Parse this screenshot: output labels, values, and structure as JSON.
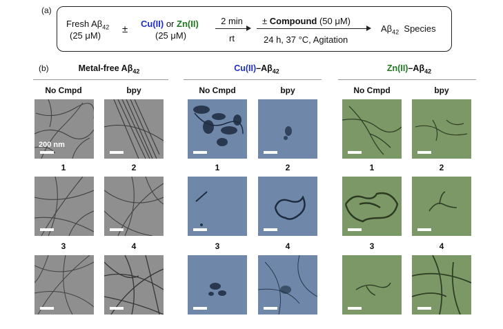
{
  "panel_a_label": "(a)",
  "panel_b_label": "(b)",
  "scheme": {
    "fresh_label": "Fresh Aβ",
    "fresh_sub": "42",
    "fresh_conc": "(25 μM)",
    "plus_minus": "±",
    "cu_label": "Cu(II)",
    "or_label": " or ",
    "zn_label": "Zn(II)",
    "metal_conc": "(25 μM)",
    "step1_top": "2 min",
    "step1_bottom": "rt",
    "step2_pm": "± ",
    "step2_compound": "Compound",
    "step2_conc": " (50 μM)",
    "step2_bottom": "24 h, 37 °C, Agitation",
    "product": "Aβ",
    "product_sub": "42",
    "product_suffix": "  Species"
  },
  "groups": [
    {
      "title_pre": "Metal-free Aβ",
      "title_sub": "42",
      "title_metal": ""
    },
    {
      "title_metal": "Cu(II)",
      "title_pre": "–Aβ",
      "title_sub": "42"
    },
    {
      "title_metal": "Zn(II)",
      "title_pre": "–Aβ",
      "title_sub": "42"
    }
  ],
  "column_labels": [
    "No Cmpd",
    "bpy",
    "1",
    "2",
    "3",
    "4"
  ],
  "scale_label": "200 nm",
  "colors": {
    "cu": "#1f2ec8",
    "zn": "#1e7a1e",
    "metal_free_bg": "#8f8f8f",
    "cu_bg": "#6f88aa",
    "zn_bg": "#7c9866"
  }
}
